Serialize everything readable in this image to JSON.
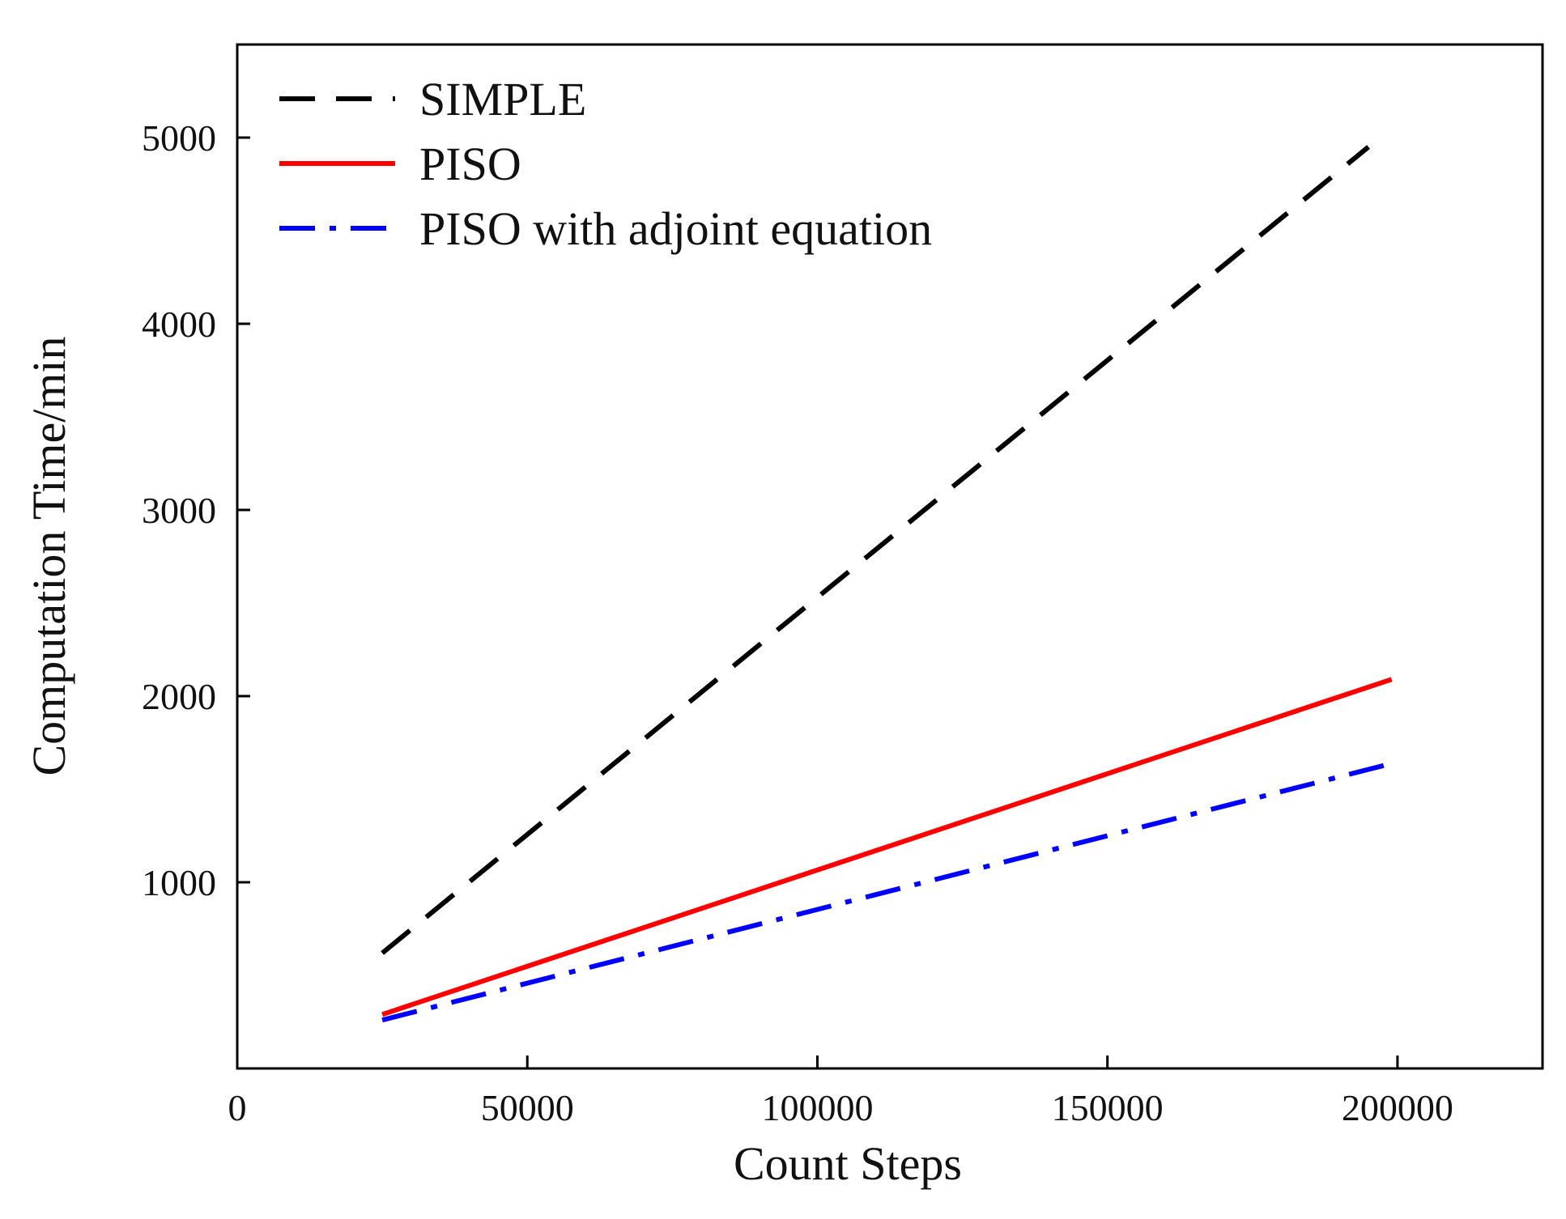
{
  "chart_data": {
    "type": "line",
    "title": "",
    "xlabel": "Count Steps",
    "ylabel": "Computation Time/min",
    "xlim": [
      0,
      225000
    ],
    "ylim": [
      0,
      5500
    ],
    "xticks": [
      0,
      50000,
      100000,
      150000,
      200000
    ],
    "xtick_labels": [
      "0",
      "50000",
      "100000",
      "150000",
      "200000"
    ],
    "yticks": [
      1000,
      2000,
      3000,
      4000,
      5000
    ],
    "ytick_labels": [
      "1000",
      "2000",
      "3000",
      "4000",
      "5000"
    ],
    "grid": false,
    "legend_position": "top-left",
    "series": [
      {
        "name": "SIMPLE",
        "color": "#000000",
        "style": "dashed",
        "x": [
          25000,
          195000
        ],
        "y": [
          620,
          4950
        ]
      },
      {
        "name": "PISO",
        "color": "#ff0000",
        "style": "solid",
        "x": [
          25000,
          199000
        ],
        "y": [
          290,
          2090
        ]
      },
      {
        "name": "PISO with adjoint equation",
        "color": "#0000ff",
        "style": "dash-dot",
        "x": [
          25000,
          198000
        ],
        "y": [
          260,
          1630
        ]
      }
    ]
  }
}
